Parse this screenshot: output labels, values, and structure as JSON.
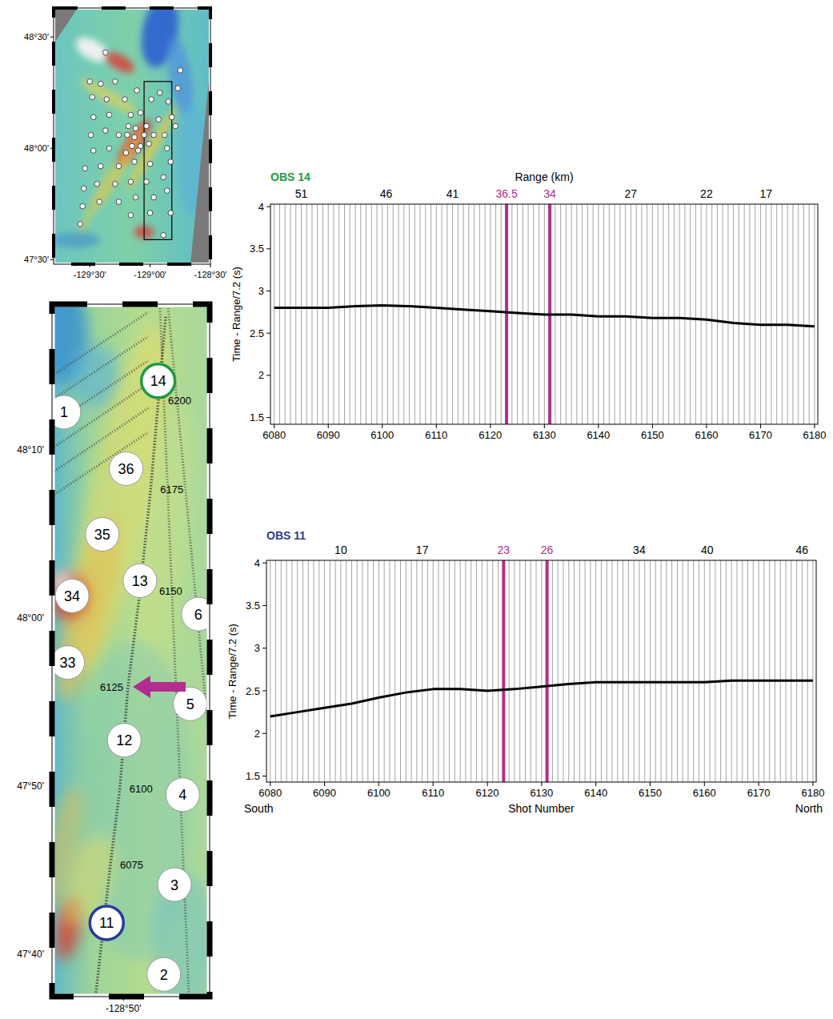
{
  "chart_data": [
    {
      "type": "line",
      "title": "OBS 14",
      "x_top_label": "Range (km)",
      "ylabel": "Time - Range/7.2 (s)",
      "color": "#000000",
      "x": [
        6080,
        6085,
        6090,
        6095,
        6100,
        6105,
        6110,
        6115,
        6120,
        6125,
        6130,
        6135,
        6140,
        6145,
        6150,
        6155,
        6160,
        6165,
        6170,
        6175,
        6180
      ],
      "values": [
        2.8,
        2.8,
        2.8,
        2.82,
        2.83,
        2.82,
        2.8,
        2.78,
        2.76,
        2.74,
        2.72,
        2.72,
        2.7,
        2.7,
        2.68,
        2.68,
        2.66,
        2.62,
        2.6,
        2.6,
        2.58
      ],
      "xlim": [
        6079.3,
        6180.6
      ],
      "xticks": [
        6080,
        6090,
        6100,
        6110,
        6120,
        6130,
        6140,
        6150,
        6160,
        6170,
        6180
      ],
      "ylim": [
        1.42,
        4.03
      ],
      "yticks": [
        1.5,
        2,
        2.5,
        3,
        3.5,
        4
      ],
      "highlight_shots": [
        6123,
        6131
      ],
      "range_ticks": [
        {
          "value": 6085,
          "label": "51"
        },
        {
          "value": 6100.7,
          "label": "46"
        },
        {
          "value": 6113,
          "label": "41"
        },
        {
          "value": 6123,
          "label": "36.5"
        },
        {
          "value": 6131,
          "label": "34"
        },
        {
          "value": 6146,
          "label": "27"
        },
        {
          "value": 6160,
          "label": "22"
        },
        {
          "value": 6171,
          "label": "17"
        }
      ]
    },
    {
      "type": "line",
      "title": "OBS 11",
      "xlabel": "Shot Number",
      "direction_labels": [
        "South",
        "North"
      ],
      "ylabel": "Time - Range/7.2 (s)",
      "color": "#000000",
      "x": [
        6080,
        6085,
        6090,
        6095,
        6100,
        6105,
        6110,
        6115,
        6120,
        6125,
        6130,
        6135,
        6140,
        6145,
        6150,
        6155,
        6160,
        6165,
        6170,
        6175,
        6180
      ],
      "values": [
        2.2,
        2.25,
        2.3,
        2.35,
        2.42,
        2.48,
        2.52,
        2.52,
        2.5,
        2.52,
        2.55,
        2.58,
        2.6,
        2.6,
        2.6,
        2.6,
        2.6,
        2.62,
        2.62,
        2.62,
        2.62
      ],
      "xlim": [
        6079.3,
        6180.6
      ],
      "xticks": [
        6080,
        6090,
        6100,
        6110,
        6120,
        6130,
        6140,
        6150,
        6160,
        6170,
        6180
      ],
      "ylim": [
        1.43,
        4.03
      ],
      "yticks": [
        1.5,
        2,
        2.5,
        3,
        3.5,
        4
      ],
      "highlight_shots": [
        6123,
        6131
      ],
      "range_ticks": [
        {
          "value": 6093,
          "label": "10"
        },
        {
          "value": 6108,
          "label": "17"
        },
        {
          "value": 6123,
          "label": "23"
        },
        {
          "value": 6131,
          "label": "26"
        },
        {
          "value": 6148,
          "label": "34"
        },
        {
          "value": 6160.5,
          "label": "40"
        },
        {
          "value": 6178,
          "label": "46"
        }
      ]
    }
  ],
  "maps": [
    {
      "lon_range": [
        -129.8,
        -128.5
      ],
      "lat_range": [
        47.48,
        48.63
      ],
      "lat_ticks": [
        {
          "value": 48.5,
          "label": "48°30'"
        },
        {
          "value": 48,
          "label": "48°00'"
        },
        {
          "value": 47.5,
          "label": "47°30'"
        }
      ],
      "lon_ticks": [
        {
          "value": -129.5,
          "label": "-129°30'"
        },
        {
          "value": -129,
          "label": "-129°00'"
        },
        {
          "value": -128.5,
          "label": "-128°30'"
        }
      ],
      "stations": {
        "lon": [
          -129.37,
          -129.5,
          -129.41,
          -129.29,
          -128.75,
          -128.77,
          -129.48,
          -129.36,
          -129.21,
          -129.11,
          -128.92,
          -128.99,
          -128.85,
          -129.47,
          -129.34,
          -129.16,
          -129.08,
          -129.18,
          -129.12,
          -129.03,
          -128.93,
          -128.82,
          -129.49,
          -129.37,
          -129.26,
          -129.19,
          -129.13,
          -129.05,
          -128.97,
          -128.88,
          -128.79,
          -129.15,
          -129.08,
          -129.01,
          -129.2,
          -129.1,
          -128.86,
          -129.47,
          -129.34,
          -129.54,
          -129.41,
          -129.26,
          -129.13,
          -129.0,
          -128.83,
          -128.89,
          -129.55,
          -129.44,
          -129.29,
          -129.16,
          -129.03,
          -128.86,
          -129.56,
          -129.42,
          -129.26,
          -129.12,
          -128.97,
          -128.83,
          -129.58,
          -129.16,
          -129.0,
          -128.89
        ],
        "lat": [
          48.43,
          48.3,
          48.29,
          48.3,
          48.35,
          48.27,
          48.23,
          48.22,
          48.22,
          48.26,
          48.25,
          48.22,
          48.21,
          48.14,
          48.15,
          48.15,
          48.16,
          48.1,
          48.09,
          48.1,
          48.13,
          48.14,
          48.06,
          48.08,
          48.06,
          48.06,
          48.05,
          48.06,
          48.06,
          48.06,
          48.1,
          48.01,
          48.01,
          48.02,
          47.98,
          47.99,
          48.0,
          47.99,
          48.0,
          47.91,
          47.92,
          47.92,
          47.94,
          47.93,
          47.94,
          47.87,
          47.82,
          47.84,
          47.84,
          47.85,
          47.85,
          47.81,
          47.74,
          47.76,
          47.76,
          47.78,
          47.78,
          47.71,
          47.66,
          47.7,
          47.71,
          47.61
        ]
      },
      "box": {
        "lon": [
          -129.05,
          -128.82
        ],
        "lat": [
          47.59,
          48.3
        ]
      }
    },
    {
      "lon_range": [
        -128.947,
        -128.696
      ],
      "lat_range": [
        47.625,
        48.311
      ],
      "lat_ticks": [
        {
          "value": 48.1667,
          "label": "48°10'"
        },
        {
          "value": 48,
          "label": "48°00'"
        },
        {
          "value": 47.8333,
          "label": "47°50'"
        },
        {
          "value": 47.6667,
          "label": "47°40'"
        }
      ],
      "lon_ticks": [
        {
          "value": -128.8333,
          "label": "-128°50'"
        }
      ],
      "obs": [
        {
          "label": "14",
          "lon": -128.778,
          "lat": 48.235,
          "color": "#1e9a45"
        },
        {
          "label": "1",
          "lon": -128.928,
          "lat": 48.204
        },
        {
          "label": "36",
          "lon": -128.829,
          "lat": 48.148
        },
        {
          "label": "35",
          "lon": -128.867,
          "lat": 48.083
        },
        {
          "label": "13",
          "lon": -128.807,
          "lat": 48.037
        },
        {
          "label": "34",
          "lon": -128.915,
          "lat": 48.022
        },
        {
          "label": "6",
          "lon": -128.714,
          "lat": 48.004
        },
        {
          "label": "33",
          "lon": -128.922,
          "lat": 47.956
        },
        {
          "label": "5",
          "lon": -128.727,
          "lat": 47.915
        },
        {
          "label": "12",
          "lon": -128.832,
          "lat": 47.879
        },
        {
          "label": "4",
          "lon": -128.739,
          "lat": 47.825
        },
        {
          "label": "3",
          "lon": -128.752,
          "lat": 47.736
        },
        {
          "label": "11",
          "lon": -128.86,
          "lat": 47.698,
          "color": "#2a3a9a"
        },
        {
          "label": "2",
          "lon": -128.769,
          "lat": 47.647
        }
      ],
      "shot_line": {
        "shots": [
          6075,
          6100,
          6125,
          6150,
          6175,
          6200
        ],
        "lon": [
          -128.854,
          -128.839,
          -128.826,
          -128.807,
          -128.79,
          -128.775
        ],
        "lat": [
          47.756,
          47.831,
          47.932,
          48.026,
          48.127,
          48.235
        ]
      },
      "line_ends": {
        "lon": [
          -128.877,
          -128.766
        ],
        "lat": [
          47.629,
          48.299
        ]
      },
      "other_lines": [
        {
          "lon": [
            -128.762,
            -128.696
          ],
          "lat": [
            48.307,
            47.875
          ]
        },
        {
          "lon": [
            -128.775,
            -128.729
          ],
          "lat": [
            48.307,
            47.625
          ]
        },
        {
          "lon": [
            -128.947,
            -128.794
          ],
          "lat": [
            48.24,
            48.303
          ]
        },
        {
          "lon": [
            -128.947,
            -128.794
          ],
          "lat": [
            48.216,
            48.279
          ]
        },
        {
          "lon": [
            -128.947,
            -128.794
          ],
          "lat": [
            48.192,
            48.255
          ]
        },
        {
          "lon": [
            -128.947,
            -128.794
          ],
          "lat": [
            48.168,
            48.232
          ]
        },
        {
          "lon": [
            -128.947,
            -128.794
          ],
          "lat": [
            48.144,
            48.208
          ]
        },
        {
          "lon": [
            -128.947,
            -128.794
          ],
          "lat": [
            48.121,
            48.184
          ]
        }
      ]
    }
  ]
}
